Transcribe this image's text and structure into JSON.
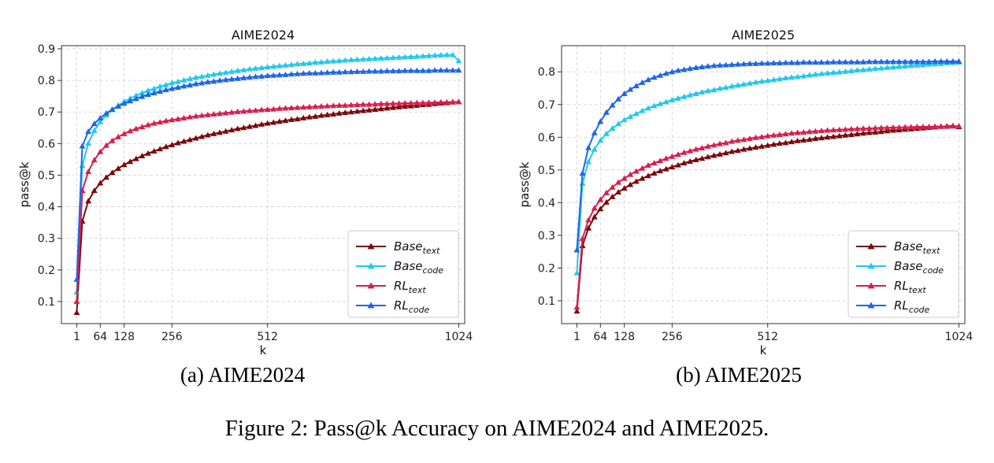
{
  "figure": {
    "caption": "Figure 2: Pass@k Accuracy on AIME2024 and AIME2025."
  },
  "colors": {
    "base_text": "#7a0a0a",
    "base_code": "#22c9ea",
    "rl_text": "#d81e4e",
    "rl_code": "#1f66e6",
    "grid": "#d0d0d0"
  },
  "chart_data": [
    {
      "type": "line",
      "title": "AIME2024",
      "subcaption": "(a) AIME2024",
      "xlabel": "k",
      "ylabel": "pass@k",
      "xlim": [
        -40,
        1040
      ],
      "ylim": [
        0.03,
        0.91
      ],
      "xticks": [
        1,
        64,
        128,
        256,
        512,
        1024
      ],
      "yticks": [
        0.1,
        0.2,
        0.3,
        0.4,
        0.5,
        0.6,
        0.7,
        0.8,
        0.9
      ],
      "grid": true,
      "legend_position": "lower-right",
      "marker": "triangle",
      "x": [
        1,
        16,
        32,
        48,
        64,
        80,
        96,
        112,
        128,
        144,
        160,
        176,
        192,
        208,
        224,
        240,
        256,
        272,
        288,
        304,
        320,
        336,
        352,
        368,
        384,
        400,
        416,
        432,
        448,
        464,
        480,
        496,
        512,
        528,
        544,
        560,
        576,
        592,
        608,
        624,
        640,
        656,
        672,
        688,
        704,
        720,
        736,
        752,
        768,
        784,
        800,
        816,
        832,
        848,
        864,
        880,
        896,
        912,
        928,
        944,
        960,
        976,
        992,
        1008,
        1024
      ],
      "series": [
        {
          "name": "Base_text",
          "label_main": "Base",
          "label_sub": "text",
          "color_key": "base_text",
          "values": [
            0.065,
            0.354,
            0.418,
            0.451,
            0.475,
            0.493,
            0.508,
            0.521,
            0.533,
            0.543,
            0.552,
            0.561,
            0.569,
            0.576,
            0.583,
            0.59,
            0.596,
            0.602,
            0.607,
            0.612,
            0.617,
            0.622,
            0.627,
            0.631,
            0.635,
            0.639,
            0.643,
            0.647,
            0.65,
            0.654,
            0.657,
            0.661,
            0.664,
            0.667,
            0.67,
            0.673,
            0.676,
            0.678,
            0.681,
            0.684,
            0.686,
            0.689,
            0.691,
            0.693,
            0.696,
            0.698,
            0.7,
            0.702,
            0.704,
            0.706,
            0.708,
            0.71,
            0.712,
            0.714,
            0.716,
            0.718,
            0.719,
            0.721,
            0.723,
            0.724,
            0.726,
            0.728,
            0.729,
            0.731,
            0.732
          ]
        },
        {
          "name": "Base_code",
          "label_main": "Base",
          "label_sub": "code",
          "color_key": "base_code",
          "values": [
            0.13,
            0.53,
            0.601,
            0.641,
            0.669,
            0.69,
            0.707,
            0.721,
            0.733,
            0.743,
            0.752,
            0.76,
            0.768,
            0.774,
            0.781,
            0.786,
            0.792,
            0.796,
            0.801,
            0.805,
            0.809,
            0.812,
            0.816,
            0.819,
            0.822,
            0.825,
            0.828,
            0.831,
            0.833,
            0.836,
            0.838,
            0.84,
            0.842,
            0.844,
            0.846,
            0.848,
            0.85,
            0.852,
            0.853,
            0.855,
            0.857,
            0.858,
            0.86,
            0.861,
            0.862,
            0.864,
            0.865,
            0.866,
            0.867,
            0.868,
            0.869,
            0.87,
            0.871,
            0.872,
            0.873,
            0.874,
            0.875,
            0.876,
            0.877,
            0.878,
            0.879,
            0.88,
            0.881,
            0.881,
            0.862
          ]
        },
        {
          "name": "RL_text",
          "label_main": "RL",
          "label_sub": "text",
          "color_key": "rl_text",
          "values": [
            0.1,
            0.451,
            0.511,
            0.548,
            0.574,
            0.594,
            0.609,
            0.621,
            0.631,
            0.64,
            0.647,
            0.653,
            0.659,
            0.664,
            0.668,
            0.672,
            0.675,
            0.678,
            0.681,
            0.684,
            0.687,
            0.689,
            0.691,
            0.693,
            0.695,
            0.697,
            0.699,
            0.701,
            0.702,
            0.704,
            0.705,
            0.707,
            0.708,
            0.709,
            0.711,
            0.712,
            0.713,
            0.714,
            0.715,
            0.716,
            0.717,
            0.718,
            0.719,
            0.72,
            0.721,
            0.721,
            0.722,
            0.723,
            0.724,
            0.724,
            0.725,
            0.726,
            0.726,
            0.727,
            0.727,
            0.728,
            0.728,
            0.729,
            0.729,
            0.73,
            0.73,
            0.731,
            0.731,
            0.732,
            0.732
          ]
        },
        {
          "name": "RL_code",
          "label_main": "RL",
          "label_sub": "code",
          "color_key": "rl_code",
          "values": [
            0.17,
            0.592,
            0.638,
            0.663,
            0.681,
            0.696,
            0.708,
            0.718,
            0.727,
            0.735,
            0.742,
            0.749,
            0.755,
            0.76,
            0.765,
            0.77,
            0.774,
            0.778,
            0.782,
            0.785,
            0.789,
            0.792,
            0.795,
            0.797,
            0.8,
            0.802,
            0.804,
            0.806,
            0.808,
            0.81,
            0.812,
            0.813,
            0.815,
            0.816,
            0.817,
            0.818,
            0.82,
            0.821,
            0.822,
            0.823,
            0.823,
            0.824,
            0.825,
            0.826,
            0.826,
            0.827,
            0.827,
            0.828,
            0.828,
            0.829,
            0.829,
            0.829,
            0.83,
            0.83,
            0.83,
            0.831,
            0.831,
            0.831,
            0.831,
            0.831,
            0.832,
            0.832,
            0.832,
            0.832,
            0.832
          ]
        }
      ]
    },
    {
      "type": "line",
      "title": "AIME2025",
      "subcaption": "(b) AIME2025",
      "xlabel": "k",
      "ylabel": "pass@k",
      "xlim": [
        -40,
        1040
      ],
      "ylim": [
        0.03,
        0.88
      ],
      "xticks": [
        1,
        64,
        128,
        256,
        512,
        1024
      ],
      "yticks": [
        0.1,
        0.2,
        0.3,
        0.4,
        0.5,
        0.6,
        0.7,
        0.8
      ],
      "grid": true,
      "legend_position": "lower-right",
      "marker": "triangle",
      "x": [
        1,
        16,
        32,
        48,
        64,
        80,
        96,
        112,
        128,
        144,
        160,
        176,
        192,
        208,
        224,
        240,
        256,
        272,
        288,
        304,
        320,
        336,
        352,
        368,
        384,
        400,
        416,
        432,
        448,
        464,
        480,
        496,
        512,
        528,
        544,
        560,
        576,
        592,
        608,
        624,
        640,
        656,
        672,
        688,
        704,
        720,
        736,
        752,
        768,
        784,
        800,
        816,
        832,
        848,
        864,
        880,
        896,
        912,
        928,
        944,
        960,
        976,
        992,
        1008,
        1024
      ],
      "series": [
        {
          "name": "Base_text",
          "label_main": "Base",
          "label_sub": "text",
          "color_key": "base_text",
          "values": [
            0.068,
            0.268,
            0.322,
            0.356,
            0.381,
            0.401,
            0.418,
            0.432,
            0.444,
            0.455,
            0.465,
            0.474,
            0.482,
            0.49,
            0.497,
            0.503,
            0.509,
            0.515,
            0.521,
            0.526,
            0.531,
            0.535,
            0.54,
            0.544,
            0.548,
            0.552,
            0.556,
            0.559,
            0.563,
            0.566,
            0.569,
            0.572,
            0.575,
            0.578,
            0.581,
            0.583,
            0.586,
            0.589,
            0.591,
            0.593,
            0.596,
            0.598,
            0.6,
            0.602,
            0.604,
            0.606,
            0.608,
            0.61,
            0.612,
            0.614,
            0.615,
            0.617,
            0.619,
            0.621,
            0.622,
            0.624,
            0.625,
            0.627,
            0.628,
            0.63,
            0.631,
            0.633,
            0.634,
            0.635,
            0.632
          ]
        },
        {
          "name": "Base_code",
          "label_main": "Base",
          "label_sub": "code",
          "color_key": "base_code",
          "values": [
            0.185,
            0.459,
            0.525,
            0.563,
            0.59,
            0.611,
            0.627,
            0.641,
            0.653,
            0.663,
            0.672,
            0.681,
            0.689,
            0.696,
            0.702,
            0.708,
            0.714,
            0.719,
            0.724,
            0.729,
            0.733,
            0.738,
            0.742,
            0.745,
            0.749,
            0.752,
            0.756,
            0.759,
            0.762,
            0.765,
            0.768,
            0.771,
            0.773,
            0.776,
            0.778,
            0.781,
            0.783,
            0.785,
            0.787,
            0.79,
            0.792,
            0.794,
            0.796,
            0.798,
            0.799,
            0.801,
            0.803,
            0.805,
            0.806,
            0.808,
            0.81,
            0.811,
            0.813,
            0.814,
            0.816,
            0.817,
            0.819,
            0.82,
            0.821,
            0.823,
            0.824,
            0.825,
            0.827,
            0.828,
            0.829
          ]
        },
        {
          "name": "RL_text",
          "label_main": "RL",
          "label_sub": "text",
          "color_key": "rl_text",
          "values": [
            0.08,
            0.29,
            0.347,
            0.383,
            0.409,
            0.43,
            0.447,
            0.462,
            0.474,
            0.486,
            0.496,
            0.505,
            0.514,
            0.521,
            0.528,
            0.535,
            0.541,
            0.547,
            0.553,
            0.558,
            0.563,
            0.567,
            0.572,
            0.576,
            0.58,
            0.583,
            0.587,
            0.59,
            0.593,
            0.596,
            0.599,
            0.601,
            0.604,
            0.606,
            0.608,
            0.61,
            0.612,
            0.614,
            0.615,
            0.617,
            0.618,
            0.62,
            0.621,
            0.622,
            0.623,
            0.624,
            0.625,
            0.626,
            0.627,
            0.627,
            0.628,
            0.629,
            0.629,
            0.63,
            0.63,
            0.631,
            0.631,
            0.632,
            0.632,
            0.632,
            0.633,
            0.633,
            0.633,
            0.634,
            0.634
          ]
        },
        {
          "name": "RL_code",
          "label_main": "RL",
          "label_sub": "code",
          "color_key": "rl_code",
          "values": [
            0.255,
            0.49,
            0.568,
            0.613,
            0.648,
            0.676,
            0.698,
            0.717,
            0.733,
            0.746,
            0.757,
            0.767,
            0.776,
            0.783,
            0.789,
            0.795,
            0.8,
            0.804,
            0.807,
            0.81,
            0.813,
            0.815,
            0.817,
            0.819,
            0.82,
            0.821,
            0.822,
            0.823,
            0.824,
            0.825,
            0.825,
            0.826,
            0.826,
            0.827,
            0.827,
            0.828,
            0.828,
            0.828,
            0.829,
            0.829,
            0.829,
            0.829,
            0.829,
            0.83,
            0.83,
            0.83,
            0.83,
            0.83,
            0.83,
            0.831,
            0.831,
            0.831,
            0.831,
            0.831,
            0.831,
            0.831,
            0.831,
            0.831,
            0.831,
            0.831,
            0.832,
            0.832,
            0.832,
            0.832,
            0.832
          ]
        }
      ]
    }
  ]
}
